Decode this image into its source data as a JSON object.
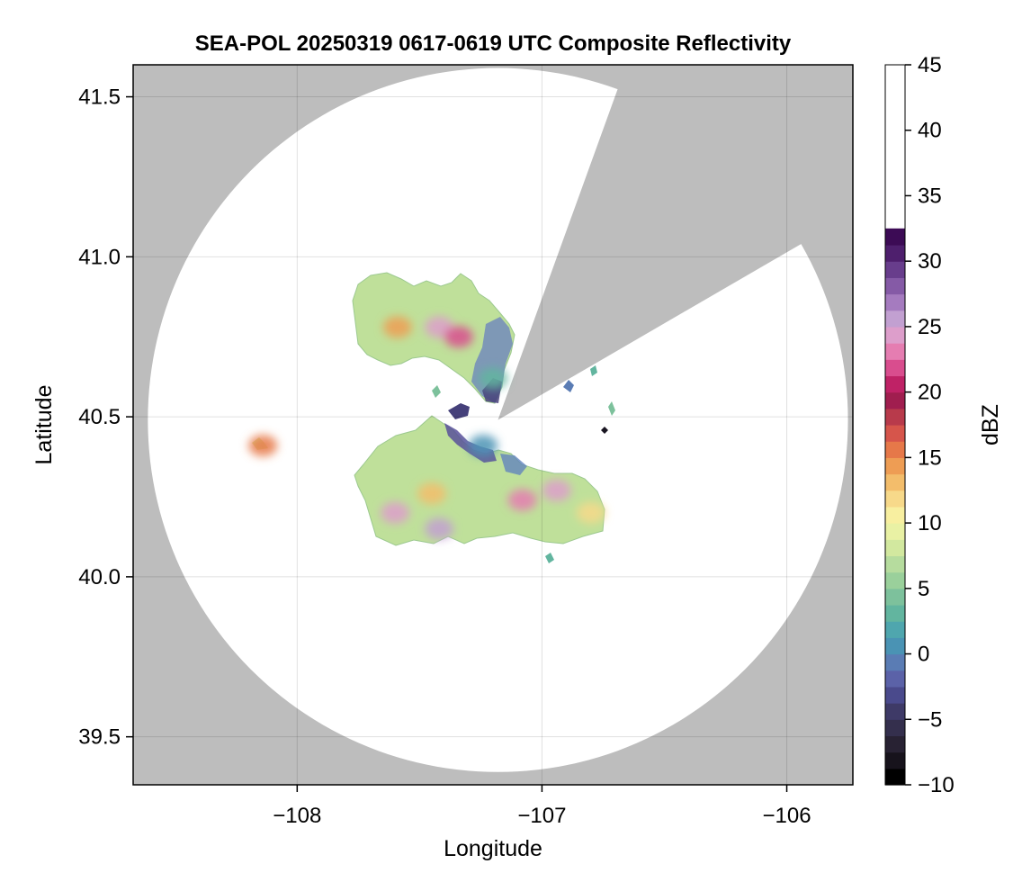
{
  "chart_data": {
    "type": "heatmap",
    "title": "SEA-POL 20250319 0617-0619 UTC Composite Reflectivity",
    "xlabel": "Longitude",
    "ylabel": "Latitude",
    "xlim": [
      -108.67,
      -105.73
    ],
    "ylim": [
      39.35,
      41.6
    ],
    "xticks": [
      -108,
      -107,
      -106
    ],
    "xtick_labels": [
      "−108",
      "−107",
      "−106"
    ],
    "yticks": [
      39.5,
      40.0,
      40.5,
      41.0,
      41.5
    ],
    "ytick_labels": [
      "39.5",
      "40.0",
      "40.5",
      "41.0",
      "41.5"
    ],
    "grid": true,
    "background_color": "#bdbdbd",
    "radar": {
      "center": [
        -107.18,
        40.49
      ],
      "range_lon": 1.43,
      "range_lat": 1.1,
      "blocked_sectors_deg_from_north": [
        [
          20,
          60
        ]
      ]
    },
    "colorbar": {
      "label": "dBZ",
      "min": -10,
      "max": 45,
      "step": 1.25,
      "ticks": [
        -10,
        -5,
        0,
        5,
        10,
        15,
        20,
        25,
        30,
        35,
        40,
        45
      ],
      "tick_labels": [
        "−10",
        "−5",
        "0",
        "5",
        "10",
        "15",
        "20",
        "25",
        "30",
        "35",
        "40",
        "45"
      ],
      "colors": [
        "#000000",
        "#17131c",
        "#282233",
        "#342f4d",
        "#3e3a67",
        "#4a4a8c",
        "#5b62a8",
        "#5a7cb4",
        "#4a93b4",
        "#4fa6ae",
        "#62b59f",
        "#7dc19c",
        "#9ad09b",
        "#b6dc9e",
        "#d2e89f",
        "#e9f1a4",
        "#f8efa0",
        "#f7d98a",
        "#f3bd6b",
        "#ee9d54",
        "#e67849",
        "#d6554b",
        "#b83a4b",
        "#a01e4f",
        "#bf2266",
        "#d94d8e",
        "#e57db1",
        "#dd9ecb",
        "#c2a0d1",
        "#a57bbf",
        "#855aa6",
        "#683d8c",
        "#4e1f6d",
        "#3c0b55"
      ]
    },
    "cells": [
      {
        "region": "northern echo",
        "lon": -107.59,
        "lat": 40.78,
        "dbz": 14
      },
      {
        "region": "northern echo core",
        "lon": -107.42,
        "lat": 40.78,
        "dbz": 24
      },
      {
        "region": "northern echo core",
        "lon": -107.34,
        "lat": 40.75,
        "dbz": 22
      },
      {
        "region": "northern echo edge",
        "lon": -107.2,
        "lat": 40.62,
        "dbz": 3
      },
      {
        "region": "southern echo",
        "lon": -107.45,
        "lat": 40.26,
        "dbz": 13
      },
      {
        "region": "southern echo core",
        "lon": -107.6,
        "lat": 40.2,
        "dbz": 24
      },
      {
        "region": "southern echo core",
        "lon": -107.42,
        "lat": 40.15,
        "dbz": 25
      },
      {
        "region": "southern echo core",
        "lon": -107.08,
        "lat": 40.24,
        "dbz": 23
      },
      {
        "region": "southern echo core",
        "lon": -106.94,
        "lat": 40.27,
        "dbz": 24
      },
      {
        "region": "southern echo",
        "lon": -106.8,
        "lat": 40.2,
        "dbz": 12
      },
      {
        "region": "southern echo edge",
        "lon": -107.24,
        "lat": 40.41,
        "dbz": 1
      },
      {
        "region": "isolated echo",
        "lon": -108.14,
        "lat": 40.41,
        "dbz": 15
      }
    ]
  }
}
